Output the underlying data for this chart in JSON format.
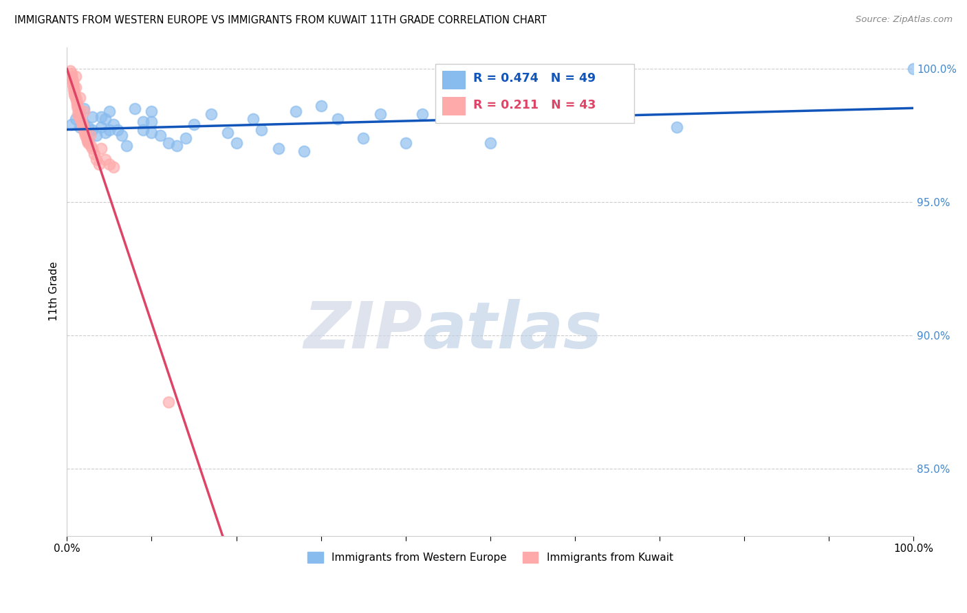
{
  "title": "IMMIGRANTS FROM WESTERN EUROPE VS IMMIGRANTS FROM KUWAIT 11TH GRADE CORRELATION CHART",
  "source": "Source: ZipAtlas.com",
  "ylabel": "11th Grade",
  "xmin": 0.0,
  "xmax": 1.0,
  "ymin": 0.825,
  "ymax": 1.008,
  "yticks": [
    0.85,
    0.9,
    0.95,
    1.0
  ],
  "ytick_labels": [
    "85.0%",
    "90.0%",
    "95.0%",
    "100.0%"
  ],
  "xticks": [
    0.0,
    0.1,
    0.2,
    0.3,
    0.4,
    0.5,
    0.6,
    0.7,
    0.8,
    0.9,
    1.0
  ],
  "xtick_labels": [
    "0.0%",
    "",
    "",
    "",
    "",
    "",
    "",
    "",
    "",
    "",
    "100.0%"
  ],
  "legend_label_blue": "Immigrants from Western Europe",
  "legend_label_pink": "Immigrants from Kuwait",
  "r_blue": 0.474,
  "n_blue": 49,
  "r_pink": 0.211,
  "n_pink": 43,
  "blue_color": "#88BBEE",
  "pink_color": "#FFAAAA",
  "trendline_blue": "#1155BB",
  "trendline_pink": "#DD4466",
  "watermark_zip": "ZIP",
  "watermark_atlas": "atlas",
  "blue_x": [
    0.005,
    0.01,
    0.015,
    0.015,
    0.02,
    0.02,
    0.025,
    0.025,
    0.03,
    0.03,
    0.035,
    0.04,
    0.04,
    0.045,
    0.045,
    0.05,
    0.05,
    0.055,
    0.06,
    0.065,
    0.07,
    0.08,
    0.09,
    0.09,
    0.1,
    0.1,
    0.1,
    0.11,
    0.12,
    0.13,
    0.14,
    0.15,
    0.17,
    0.19,
    0.2,
    0.22,
    0.23,
    0.25,
    0.27,
    0.28,
    0.3,
    0.32,
    0.35,
    0.37,
    0.4,
    0.42,
    0.5,
    0.72,
    1.0
  ],
  "blue_y": [
    0.979,
    0.981,
    0.983,
    0.978,
    0.985,
    0.979,
    0.978,
    0.973,
    0.982,
    0.977,
    0.975,
    0.982,
    0.978,
    0.981,
    0.976,
    0.984,
    0.977,
    0.979,
    0.977,
    0.975,
    0.971,
    0.985,
    0.98,
    0.977,
    0.984,
    0.98,
    0.976,
    0.975,
    0.972,
    0.971,
    0.974,
    0.979,
    0.983,
    0.976,
    0.972,
    0.981,
    0.977,
    0.97,
    0.984,
    0.969,
    0.986,
    0.981,
    0.974,
    0.983,
    0.972,
    0.983,
    0.972,
    0.978,
    1.0
  ],
  "pink_x": [
    0.004,
    0.005,
    0.005,
    0.006,
    0.007,
    0.007,
    0.008,
    0.008,
    0.009,
    0.009,
    0.01,
    0.01,
    0.01,
    0.011,
    0.012,
    0.012,
    0.013,
    0.013,
    0.014,
    0.015,
    0.015,
    0.016,
    0.017,
    0.018,
    0.019,
    0.02,
    0.02,
    0.021,
    0.022,
    0.023,
    0.024,
    0.025,
    0.027,
    0.028,
    0.03,
    0.032,
    0.035,
    0.038,
    0.04,
    0.045,
    0.05,
    0.055,
    0.12
  ],
  "pink_y": [
    0.999,
    0.998,
    0.997,
    0.996,
    0.995,
    0.994,
    0.993,
    0.992,
    0.991,
    0.99,
    0.997,
    0.993,
    0.989,
    0.988,
    0.987,
    0.986,
    0.985,
    0.983,
    0.982,
    0.989,
    0.984,
    0.981,
    0.98,
    0.979,
    0.978,
    0.984,
    0.977,
    0.976,
    0.975,
    0.974,
    0.973,
    0.972,
    0.975,
    0.971,
    0.97,
    0.968,
    0.966,
    0.964,
    0.97,
    0.966,
    0.964,
    0.963,
    0.875
  ]
}
